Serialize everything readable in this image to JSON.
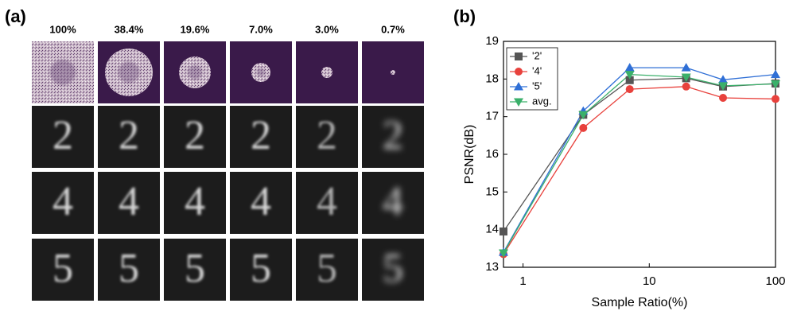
{
  "panel_a": {
    "label": "(a)",
    "columns": [
      "100%",
      "38.4%",
      "19.6%",
      "7.0%",
      "3.0%",
      "0.7%"
    ],
    "digits": [
      "2",
      "4",
      "5"
    ]
  },
  "panel_b": {
    "label": "(b)"
  },
  "chart_data": {
    "type": "line",
    "x_label": "Sample Ratio(%)",
    "y_label": "PSNR(dB)",
    "x": [
      0.7,
      3.0,
      7.0,
      19.6,
      38.4,
      100
    ],
    "series": [
      {
        "name": "'2'",
        "color": "#555555",
        "marker": "square",
        "values": [
          13.95,
          17.05,
          17.97,
          18.02,
          17.8,
          17.88
        ]
      },
      {
        "name": "'4'",
        "color": "#e8413c",
        "marker": "circle",
        "values": [
          13.35,
          16.7,
          17.73,
          17.8,
          17.5,
          17.47
        ]
      },
      {
        "name": "'5'",
        "color": "#2f6fd6",
        "marker": "triangle-up",
        "values": [
          13.4,
          17.15,
          18.3,
          18.3,
          17.98,
          18.12
        ]
      },
      {
        "name": "avg.",
        "color": "#3ab06a",
        "marker": "triangle-down",
        "values": [
          13.38,
          17.05,
          18.12,
          18.05,
          17.82,
          17.87
        ]
      }
    ],
    "x_log": true,
    "xlim": [
      0.7,
      100
    ],
    "xticks": [
      1,
      10,
      100
    ],
    "ylim": [
      13,
      19
    ],
    "yticks": [
      13,
      14,
      15,
      16,
      17,
      18,
      19
    ],
    "legend": "upper-left"
  }
}
